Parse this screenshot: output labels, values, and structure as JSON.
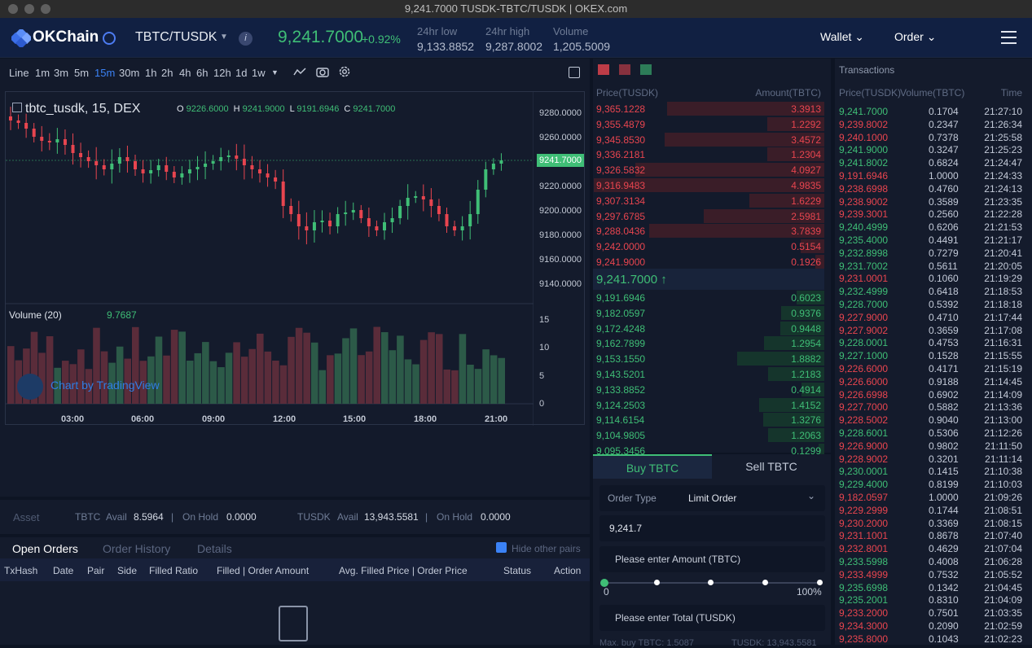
{
  "window": {
    "title": "9,241.7000 TUSDK-TBTC/TUSDK | OKEX.com"
  },
  "nav": {
    "brand": "OKChain",
    "pair": "TBTC/TUSDK",
    "last_price": "9,241.7000",
    "change": "+0.92%",
    "low_label": "24hr low",
    "low": "9,133.8852",
    "high_label": "24hr high",
    "high": "9,287.8002",
    "vol_label": "Volume",
    "vol": "1,205.5009",
    "wallet": "Wallet",
    "order": "Order"
  },
  "chart": {
    "timeframes": [
      "Line",
      "1m",
      "3m",
      "5m",
      "15m",
      "30m",
      "1h",
      "2h",
      "4h",
      "6h",
      "12h",
      "1d",
      "1w"
    ],
    "active_tf": "15m",
    "symbol": "tbtc_tusdk, 15, DEX",
    "ohlc": {
      "o": "9226.6000",
      "h": "9241.9000",
      "l": "9191.6946",
      "c": "9241.7000"
    },
    "price_ticks": [
      "9280.0000",
      "9260.0000",
      "9220.0000",
      "9200.0000",
      "9180.0000",
      "9160.0000",
      "9140.0000"
    ],
    "price_tag": "9241.7000",
    "volume_label": "Volume (20)",
    "volume_value": "9.7687",
    "volume_ticks": [
      "15",
      "10",
      "5",
      "0"
    ],
    "time_ticks": [
      "03:00",
      "06:00",
      "09:00",
      "12:00",
      "15:00",
      "18:00",
      "21:00"
    ],
    "attribution": "Chart by TradingView",
    "accent": "#3fbe76",
    "down": "#e8454f"
  },
  "asset": {
    "title": "Asset",
    "tbtc": "TBTC",
    "avail": "Avail",
    "tbtc_avail": "8.5964",
    "on_hold": "On Hold",
    "tbtc_hold": "0.0000",
    "tusdk": "TUSDK",
    "tusdk_avail": "13,943.5581",
    "tusdk_hold": "0.0000"
  },
  "orders": {
    "tabs": [
      "Open Orders",
      "Order History",
      "Details"
    ],
    "hide_label": "Hide other pairs",
    "columns": [
      "TxHash",
      "Date",
      "Pair",
      "Side",
      "Filled Ratio",
      "Filled | Order Amount",
      "Avg. Filled Price | Order Price",
      "Status",
      "Action"
    ]
  },
  "book": {
    "col_price": "Price(TUSDK)",
    "col_amount": "Amount(TBTC)",
    "mid": "9,241.7000 ↑",
    "asks": [
      [
        "9,365.1228",
        "3.3913"
      ],
      [
        "9,355.4879",
        "1.2292"
      ],
      [
        "9,345.8530",
        "3.4572"
      ],
      [
        "9,336.2181",
        "1.2304"
      ],
      [
        "9,326.5832",
        "4.0927"
      ],
      [
        "9,316.9483",
        "4.9835"
      ],
      [
        "9,307.3134",
        "1.6229"
      ],
      [
        "9,297.6785",
        "2.5981"
      ],
      [
        "9,288.0436",
        "3.7839"
      ],
      [
        "9,242.0000",
        "0.5154"
      ],
      [
        "9,241.9000",
        "0.1926"
      ]
    ],
    "bids": [
      [
        "9,191.6946",
        "0.6023"
      ],
      [
        "9,182.0597",
        "0.9376"
      ],
      [
        "9,172.4248",
        "0.9448"
      ],
      [
        "9,162.7899",
        "1.2954"
      ],
      [
        "9,153.1550",
        "1.8882"
      ],
      [
        "9,143.5201",
        "1.2183"
      ],
      [
        "9,133.8852",
        "0.4914"
      ],
      [
        "9,124.2503",
        "1.4152"
      ],
      [
        "9,114.6154",
        "1.3276"
      ],
      [
        "9,104.9805",
        "1.2063"
      ],
      [
        "9,095.3456",
        "0.1299"
      ]
    ]
  },
  "trade": {
    "buy_tab": "Buy TBTC",
    "sell_tab": "Sell TBTC",
    "order_type_label": "Order Type",
    "order_type": "Limit Order",
    "price": "9,241.7",
    "amount_ph": "Please enter Amount (TBTC)",
    "min": "0",
    "max": "100%",
    "total_ph": "Please enter Total (TUSDK)",
    "max_buy": "Max. buy TBTC: 1.5087",
    "balance": "TUSDK: 13,943.5581"
  },
  "tx": {
    "title": "Transactions",
    "col_price": "Price(TUSDK)",
    "col_vol": "Volume(TBTC)",
    "col_time": "Time",
    "rows": [
      [
        "9,241.7000",
        "0.1704",
        "21:27:10",
        "up"
      ],
      [
        "9,239.8002",
        "0.2347",
        "21:26:34",
        "down"
      ],
      [
        "9,240.1000",
        "0.7378",
        "21:25:58",
        "down"
      ],
      [
        "9,241.9000",
        "0.3247",
        "21:25:23",
        "up"
      ],
      [
        "9,241.8002",
        "0.6824",
        "21:24:47",
        "up"
      ],
      [
        "9,191.6946",
        "1.0000",
        "21:24:33",
        "down"
      ],
      [
        "9,238.6998",
        "0.4760",
        "21:24:13",
        "down"
      ],
      [
        "9,238.9002",
        "0.3589",
        "21:23:35",
        "down"
      ],
      [
        "9,239.3001",
        "0.2560",
        "21:22:28",
        "down"
      ],
      [
        "9,240.4999",
        "0.6206",
        "21:21:53",
        "up"
      ],
      [
        "9,235.4000",
        "0.4491",
        "21:21:17",
        "up"
      ],
      [
        "9,232.8998",
        "0.7279",
        "21:20:41",
        "up"
      ],
      [
        "9,231.7002",
        "0.5611",
        "21:20:05",
        "up"
      ],
      [
        "9,231.0001",
        "0.1060",
        "21:19:29",
        "down"
      ],
      [
        "9,232.4999",
        "0.6418",
        "21:18:53",
        "up"
      ],
      [
        "9,228.7000",
        "0.5392",
        "21:18:18",
        "up"
      ],
      [
        "9,227.9000",
        "0.4710",
        "21:17:44",
        "down"
      ],
      [
        "9,227.9002",
        "0.3659",
        "21:17:08",
        "down"
      ],
      [
        "9,228.0001",
        "0.4753",
        "21:16:31",
        "up"
      ],
      [
        "9,227.1000",
        "0.1528",
        "21:15:55",
        "up"
      ],
      [
        "9,226.6000",
        "0.4171",
        "21:15:19",
        "down"
      ],
      [
        "9,226.6000",
        "0.9188",
        "21:14:45",
        "down"
      ],
      [
        "9,226.6998",
        "0.6902",
        "21:14:09",
        "down"
      ],
      [
        "9,227.7000",
        "0.5882",
        "21:13:36",
        "down"
      ],
      [
        "9,228.5002",
        "0.9040",
        "21:13:00",
        "down"
      ],
      [
        "9,228.6001",
        "0.5306",
        "21:12:26",
        "up"
      ],
      [
        "9,226.9000",
        "0.9802",
        "21:11:50",
        "down"
      ],
      [
        "9,228.9002",
        "0.3201",
        "21:11:14",
        "down"
      ],
      [
        "9,230.0001",
        "0.1415",
        "21:10:38",
        "up"
      ],
      [
        "9,229.4000",
        "0.8199",
        "21:10:03",
        "up"
      ],
      [
        "9,182.0597",
        "1.0000",
        "21:09:26",
        "down"
      ],
      [
        "9,229.2999",
        "0.1744",
        "21:08:51",
        "down"
      ],
      [
        "9,230.2000",
        "0.3369",
        "21:08:15",
        "down"
      ],
      [
        "9,231.1001",
        "0.8678",
        "21:07:40",
        "down"
      ],
      [
        "9,232.8001",
        "0.4629",
        "21:07:04",
        "down"
      ],
      [
        "9,233.5998",
        "0.4008",
        "21:06:28",
        "up"
      ],
      [
        "9,233.4999",
        "0.7532",
        "21:05:52",
        "down"
      ],
      [
        "9,235.6998",
        "0.1342",
        "21:04:45",
        "up"
      ],
      [
        "9,235.2001",
        "0.8310",
        "21:04:09",
        "up"
      ],
      [
        "9,233.2000",
        "0.7501",
        "21:03:35",
        "down"
      ],
      [
        "9,234.3000",
        "0.2090",
        "21:02:59",
        "down"
      ],
      [
        "9,235.8000",
        "0.1043",
        "21:02:23",
        "down"
      ]
    ]
  }
}
